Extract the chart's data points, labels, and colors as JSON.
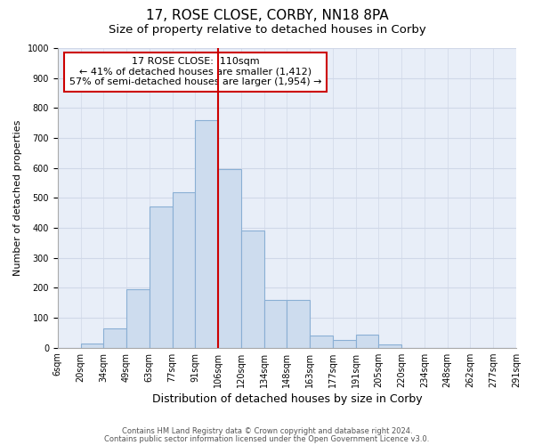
{
  "title": "17, ROSE CLOSE, CORBY, NN18 8PA",
  "subtitle": "Size of property relative to detached houses in Corby",
  "xlabel": "Distribution of detached houses by size in Corby",
  "ylabel": "Number of detached properties",
  "bin_labels": [
    "6sqm",
    "20sqm",
    "34sqm",
    "49sqm",
    "63sqm",
    "77sqm",
    "91sqm",
    "106sqm",
    "120sqm",
    "134sqm",
    "148sqm",
    "163sqm",
    "177sqm",
    "191sqm",
    "205sqm",
    "220sqm",
    "234sqm",
    "248sqm",
    "262sqm",
    "277sqm",
    "291sqm"
  ],
  "bar_values": [
    0,
    15,
    65,
    195,
    470,
    520,
    760,
    595,
    390,
    160,
    160,
    40,
    25,
    45,
    10,
    0,
    0,
    0,
    0,
    0
  ],
  "bar_color": "#cddcee",
  "bar_edge_color": "#8aafd4",
  "grid_color": "#d0d8e8",
  "bg_color": "#e8eef8",
  "vline_color": "#cc0000",
  "vline_x_index": 7,
  "annotation_text": "17 ROSE CLOSE:  110sqm\n← 41% of detached houses are smaller (1,412)\n57% of semi-detached houses are larger (1,954) →",
  "annotation_box_color": "#ffffff",
  "annotation_box_edge": "#cc0000",
  "ylim": [
    0,
    1000
  ],
  "yticks": [
    0,
    100,
    200,
    300,
    400,
    500,
    600,
    700,
    800,
    900,
    1000
  ],
  "footer1": "Contains HM Land Registry data © Crown copyright and database right 2024.",
  "footer2": "Contains public sector information licensed under the Open Government Licence v3.0.",
  "title_fontsize": 11,
  "subtitle_fontsize": 9.5,
  "xlabel_fontsize": 9,
  "ylabel_fontsize": 8,
  "tick_fontsize": 7,
  "annotation_fontsize": 8
}
